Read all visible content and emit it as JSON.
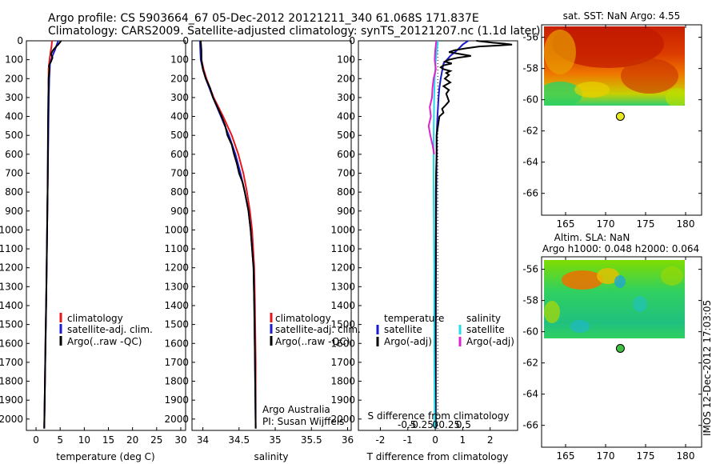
{
  "header": {
    "line1": "Argo profile: CS 5903664_67 05-Dec-2012 20121211_340 61.068S 171.837E",
    "line2": "Climatology: CARS2009. Satellite-adjusted climatology: synTS_20121207.nc (1.1d later)"
  },
  "depth_ticks": [
    "0",
    "100",
    "200",
    "300",
    "400",
    "500",
    "600",
    "700",
    "800",
    "900",
    "1000",
    "1100",
    "1200",
    "1300",
    "1400",
    "1500",
    "1600",
    "1700",
    "1800",
    "1900",
    "2000"
  ],
  "colors": {
    "climatology": "#e8141e",
    "satellite": "#1a1ad0",
    "argo": "#000000",
    "sal_sat": "#25dcea",
    "sal_argo": "#e020d0"
  },
  "chart_data": [
    {
      "id": "temperature",
      "type": "line",
      "xlabel": "temperature (deg C)",
      "xlim": [
        -2,
        31
      ],
      "ylim": [
        2060,
        0
      ],
      "xticks": [
        0,
        5,
        10,
        15,
        20,
        25,
        30
      ],
      "legend": [
        "climatology",
        "satellite-adj. clim.",
        "Argo(..raw -QC)"
      ],
      "series": [
        {
          "name": "climatology",
          "depth": [
            0,
            30,
            60,
            100,
            150,
            200,
            300,
            500,
            700,
            1000,
            1300,
            1600,
            1900,
            2050
          ],
          "values": [
            3.3,
            3.2,
            3.0,
            2.8,
            2.6,
            2.6,
            2.6,
            2.5,
            2.45,
            2.3,
            2.15,
            1.95,
            1.8,
            1.7
          ]
        },
        {
          "name": "satellite-adj. clim.",
          "depth": [
            0,
            20,
            50,
            80,
            120,
            200,
            300,
            500,
            700,
            1000,
            1300,
            1600,
            1900,
            2050
          ],
          "values": [
            4.6,
            4.3,
            3.9,
            3.4,
            2.9,
            2.75,
            2.65,
            2.55,
            2.45,
            2.3,
            2.15,
            1.95,
            1.8,
            1.7
          ]
        },
        {
          "name": "Argo(..raw -QC)",
          "depth": [
            0,
            10,
            20,
            30,
            50,
            70,
            90,
            110,
            130,
            150,
            200,
            250,
            300,
            400,
            600,
            800,
            1000,
            1400,
            1800,
            2050
          ],
          "values": [
            5.2,
            4.9,
            4.6,
            4.2,
            3.5,
            3.1,
            3.4,
            3.1,
            2.7,
            2.8,
            2.6,
            2.6,
            2.55,
            2.5,
            2.45,
            2.4,
            2.3,
            2.1,
            1.85,
            1.7
          ]
        }
      ]
    },
    {
      "id": "salinity",
      "type": "line",
      "xlabel": "salinity",
      "xlim": [
        33.85,
        36.05
      ],
      "ylim": [
        2060,
        0
      ],
      "xticks": [
        34,
        34.5,
        35,
        35.5,
        36
      ],
      "xticklabels": [
        "34",
        "34.5",
        "35",
        "35.5",
        "36"
      ],
      "legend": [
        "climatology",
        "satellite-adj. clim.",
        "Argo(..raw -QC)"
      ],
      "series": [
        {
          "name": "climatology",
          "depth": [
            0,
            100,
            150,
            200,
            300,
            400,
            500,
            600,
            700,
            800,
            900,
            1000,
            1200,
            1400,
            1700,
            2050
          ],
          "values": [
            33.97,
            33.98,
            34.01,
            34.05,
            34.15,
            34.28,
            34.4,
            34.49,
            34.56,
            34.61,
            34.65,
            34.68,
            34.71,
            34.72,
            34.73,
            34.73
          ]
        },
        {
          "name": "satellite-adj. clim.",
          "depth": [
            0,
            100,
            150,
            200,
            300,
            400,
            500,
            600,
            700,
            800,
            900,
            1000,
            1200,
            1400,
            1700,
            2050
          ],
          "values": [
            33.96,
            33.97,
            34.0,
            34.04,
            34.14,
            34.25,
            34.36,
            34.45,
            34.52,
            34.58,
            34.63,
            34.66,
            34.7,
            34.71,
            34.72,
            34.73
          ]
        },
        {
          "name": "Argo(..raw -QC)",
          "depth": [
            0,
            50,
            100,
            150,
            200,
            250,
            300,
            350,
            400,
            450,
            500,
            550,
            600,
            650,
            700,
            750,
            800,
            900,
            1000,
            1200,
            1400,
            1700,
            2050
          ],
          "values": [
            33.97,
            33.98,
            33.98,
            34.0,
            34.04,
            34.1,
            34.14,
            34.2,
            34.26,
            34.31,
            34.34,
            34.4,
            34.43,
            34.47,
            34.5,
            34.55,
            34.58,
            34.63,
            34.66,
            34.7,
            34.71,
            34.72,
            34.73
          ]
        }
      ],
      "notes": [
        "Argo Australia",
        "PI: Susan Wijffels"
      ]
    },
    {
      "id": "difference",
      "type": "line",
      "xlabel": "T difference from climatology",
      "xlabel_top": "S difference from climatology",
      "xlim": [
        -2.8,
        3.0
      ],
      "ylim": [
        2060,
        0
      ],
      "xticks": [
        -2,
        -1,
        0,
        1,
        2
      ],
      "sticks": [
        -0.5,
        -0.25,
        0,
        0.25,
        0.5
      ],
      "sticklabels": [
        "-0.5",
        "-0.25",
        "0",
        "0.25",
        "0.5"
      ],
      "legend_t": {
        "title": "temperature",
        "items": [
          "satellite",
          "Argo(-adj)"
        ]
      },
      "legend_s": {
        "title": "salinity",
        "items": [
          "satellite",
          "Argo(-adj)"
        ]
      },
      "series": [
        {
          "name": "T satellite",
          "depth": [
            0,
            20,
            50,
            80,
            120,
            160,
            200,
            250,
            300,
            400,
            500,
            600,
            800,
            1000,
            1500,
            2050
          ],
          "values": [
            1.2,
            1.0,
            0.8,
            0.55,
            0.3,
            0.25,
            0.2,
            0.15,
            0.12,
            0.08,
            0.05,
            0.05,
            0.04,
            0.03,
            0.02,
            0.02
          ]
        },
        {
          "name": "T Argo(-adj)",
          "depth": [
            0,
            10,
            15,
            20,
            25,
            30,
            40,
            50,
            60,
            70,
            80,
            90,
            100,
            110,
            120,
            130,
            140,
            150,
            160,
            170,
            180,
            200,
            220,
            240,
            260,
            280,
            300,
            320,
            340,
            360,
            380,
            400,
            450,
            500,
            600,
            700,
            800,
            1000,
            1500,
            2050
          ],
          "values": [
            1.5,
            2.1,
            2.5,
            2.8,
            2.3,
            1.6,
            1.1,
            0.7,
            0.5,
            0.9,
            1.3,
            0.8,
            0.5,
            0.35,
            0.6,
            0.3,
            0.2,
            0.3,
            0.55,
            0.4,
            0.5,
            0.35,
            0.55,
            0.3,
            0.5,
            0.4,
            0.45,
            0.5,
            0.38,
            0.25,
            0.3,
            0.15,
            0.1,
            0.05,
            0.05,
            0.03,
            0.02,
            0.02,
            0.01,
            0.01
          ]
        },
        {
          "name": "S satellite",
          "depth": [
            0,
            50,
            100,
            150,
            200,
            300,
            500,
            800,
            1200,
            1600,
            2050
          ],
          "values": [
            0.05,
            0.03,
            0.01,
            0.0,
            -0.01,
            -0.02,
            -0.03,
            -0.03,
            -0.02,
            -0.02,
            -0.01
          ]
        },
        {
          "name": "S Argo(-adj)",
          "depth": [
            0,
            50,
            100,
            150,
            200,
            250,
            300,
            350,
            400,
            450,
            500,
            550,
            600
          ],
          "values": [
            0.02,
            0.0,
            -0.01,
            0.01,
            -0.03,
            -0.05,
            -0.06,
            -0.1,
            -0.08,
            -0.12,
            -0.09,
            -0.05,
            -0.02
          ]
        }
      ]
    },
    {
      "id": "sst-map",
      "type": "heatmap",
      "title": "sat. SST: NaN Argo: 4.55",
      "xlim": [
        162,
        182
      ],
      "ylim": [
        -67.4,
        -55.2
      ],
      "xticks": [
        165,
        170,
        175,
        180
      ],
      "yticks": [
        -56,
        -58,
        -60,
        -62,
        -64,
        -66
      ],
      "float_lon": 171.837,
      "float_lat": -61.068
    },
    {
      "id": "sla-map",
      "type": "heatmap",
      "title": "Altim. SLA: NaN",
      "subtitle": "Argo h1000: 0.048 h2000: 0.064",
      "xlim": [
        162,
        182
      ],
      "ylim": [
        -67.4,
        -55.2
      ],
      "xticks": [
        165,
        170,
        175,
        180
      ],
      "yticks": [
        -56,
        -58,
        -60,
        -62,
        -64,
        -66
      ],
      "float_lon": 171.837,
      "float_lat": -61.068
    }
  ],
  "stamp": "IMOS 12-Dec-2012 17:03:05"
}
